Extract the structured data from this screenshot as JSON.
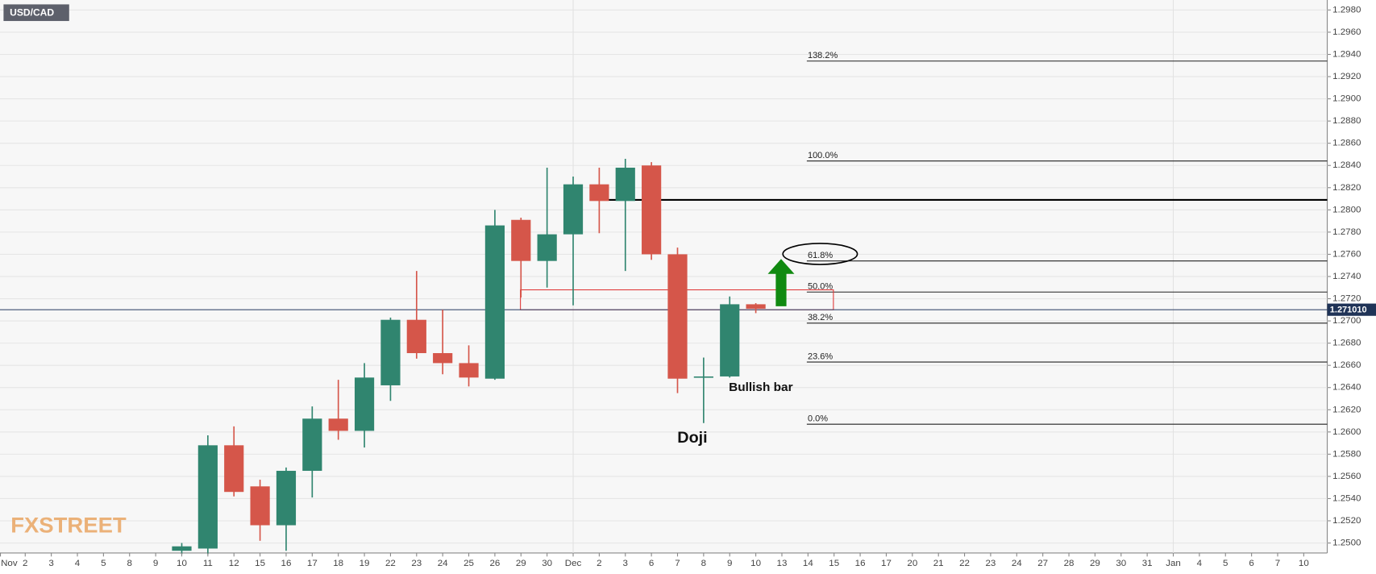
{
  "chart_data": {
    "type": "candlestick",
    "title": "USD/CAD",
    "logo": "FXSTREET",
    "categories": [
      "Nov",
      "2",
      "3",
      "4",
      "5",
      "8",
      "9",
      "10",
      "11",
      "12",
      "15",
      "16",
      "17",
      "18",
      "19",
      "22",
      "23",
      "24",
      "25",
      "26",
      "29",
      "30",
      "Dec",
      "2",
      "3",
      "6",
      "7",
      "8",
      "9",
      "10",
      "13",
      "14",
      "15",
      "16",
      "17",
      "20",
      "21",
      "22",
      "23",
      "24",
      "27",
      "28",
      "29",
      "30",
      "31",
      "Jan",
      "4",
      "5",
      "6",
      "7",
      "10"
    ],
    "open": [
      null,
      null,
      null,
      null,
      null,
      null,
      null,
      1.2493,
      1.2495,
      1.2588,
      1.2551,
      1.2516,
      1.2565,
      1.2612,
      1.2601,
      1.2642,
      1.2701,
      1.2671,
      1.2662,
      1.2648,
      1.2791,
      1.2754,
      1.2778,
      1.2823,
      1.2808,
      1.284,
      1.276,
      1.2649,
      1.265,
      1.2715,
      null,
      null,
      null,
      null,
      null,
      null,
      null,
      null,
      null,
      null,
      null,
      null,
      null,
      null,
      null,
      null,
      null,
      null,
      null,
      null,
      null
    ],
    "high": [
      null,
      null,
      null,
      null,
      null,
      null,
      null,
      1.25,
      1.2597,
      1.2605,
      1.2557,
      1.2568,
      1.2623,
      1.2647,
      1.2662,
      1.2703,
      1.2745,
      1.271,
      1.2678,
      1.28,
      1.2793,
      1.2838,
      1.283,
      1.2838,
      1.2846,
      1.2843,
      1.2766,
      1.2667,
      1.2722,
      1.2716,
      null,
      null,
      null,
      null,
      null,
      null,
      null,
      null,
      null,
      null,
      null,
      null,
      null,
      null,
      null,
      null,
      null,
      null,
      null,
      null,
      null
    ],
    "low": [
      null,
      null,
      null,
      null,
      null,
      null,
      null,
      1.249,
      1.249,
      1.2542,
      1.2502,
      1.2493,
      1.2541,
      1.2593,
      1.2586,
      1.2628,
      1.2666,
      1.2652,
      1.2641,
      1.2647,
      1.2721,
      1.273,
      1.2714,
      1.2779,
      1.2745,
      1.2755,
      1.2635,
      1.2608,
      1.2649,
      1.2707,
      null,
      null,
      null,
      null,
      null,
      null,
      null,
      null,
      null,
      null,
      null,
      null,
      null,
      null,
      null,
      null,
      null,
      null,
      null,
      null,
      null
    ],
    "close": [
      null,
      null,
      null,
      null,
      null,
      null,
      null,
      1.2497,
      1.2588,
      1.2546,
      1.2516,
      1.2565,
      1.2612,
      1.2601,
      1.2649,
      1.2701,
      1.2671,
      1.2662,
      1.2649,
      1.2786,
      1.2754,
      1.2778,
      1.2823,
      1.2808,
      1.2838,
      1.276,
      1.2648,
      1.265,
      1.2715,
      1.2711,
      null,
      null,
      null,
      null,
      null,
      null,
      null,
      null,
      null,
      null,
      null,
      null,
      null,
      null,
      null,
      null,
      null,
      null,
      null,
      null,
      null
    ],
    "up_color": "#30856f",
    "down_color": "#d5564a",
    "ylim": [
      1.2491,
      1.2989
    ],
    "yticks": [
      {
        "value": 1.25,
        "label": "1.2500"
      },
      {
        "value": 1.252,
        "label": "1.2520"
      },
      {
        "value": 1.254,
        "label": "1.2540"
      },
      {
        "value": 1.256,
        "label": "1.2560"
      },
      {
        "value": 1.258,
        "label": "1.2580"
      },
      {
        "value": 1.26,
        "label": "1.2600"
      },
      {
        "value": 1.262,
        "label": "1.2620"
      },
      {
        "value": 1.264,
        "label": "1.2640"
      },
      {
        "value": 1.266,
        "label": "1.2660"
      },
      {
        "value": 1.268,
        "label": "1.2680"
      },
      {
        "value": 1.27,
        "label": "1.2700"
      },
      {
        "value": 1.272,
        "label": "1.2720"
      },
      {
        "value": 1.274,
        "label": "1.2740"
      },
      {
        "value": 1.276,
        "label": "1.2760"
      },
      {
        "value": 1.278,
        "label": "1.2780"
      },
      {
        "value": 1.28,
        "label": "1.2800"
      },
      {
        "value": 1.282,
        "label": "1.2820"
      },
      {
        "value": 1.284,
        "label": "1.2840"
      },
      {
        "value": 1.286,
        "label": "1.2860"
      },
      {
        "value": 1.288,
        "label": "1.2880"
      },
      {
        "value": 1.29,
        "label": "1.2900"
      },
      {
        "value": 1.292,
        "label": "1.2920"
      },
      {
        "value": 1.294,
        "label": "1.2940"
      },
      {
        "value": 1.296,
        "label": "1.2960"
      },
      {
        "value": 1.298,
        "label": "1.2980"
      }
    ],
    "grid": true,
    "last_price": {
      "value": 1.27101,
      "label": "1.271010"
    },
    "fib_levels": [
      {
        "label": "138.2%",
        "value": 1.2934
      },
      {
        "label": "100.0%",
        "value": 1.2844
      },
      {
        "label": "61.8%",
        "value": 1.2754
      },
      {
        "label": "50.0%",
        "value": 1.2726
      },
      {
        "label": "38.2%",
        "value": 1.2698
      },
      {
        "label": "23.6%",
        "value": 1.2663
      },
      {
        "label": "0.0%",
        "value": 1.2607
      }
    ],
    "resistance": 1.2809,
    "zone": {
      "low": 1.271,
      "high": 1.2728
    },
    "annotations": [
      {
        "text": "Doji"
      },
      {
        "text": "Bullish bar"
      }
    ]
  }
}
